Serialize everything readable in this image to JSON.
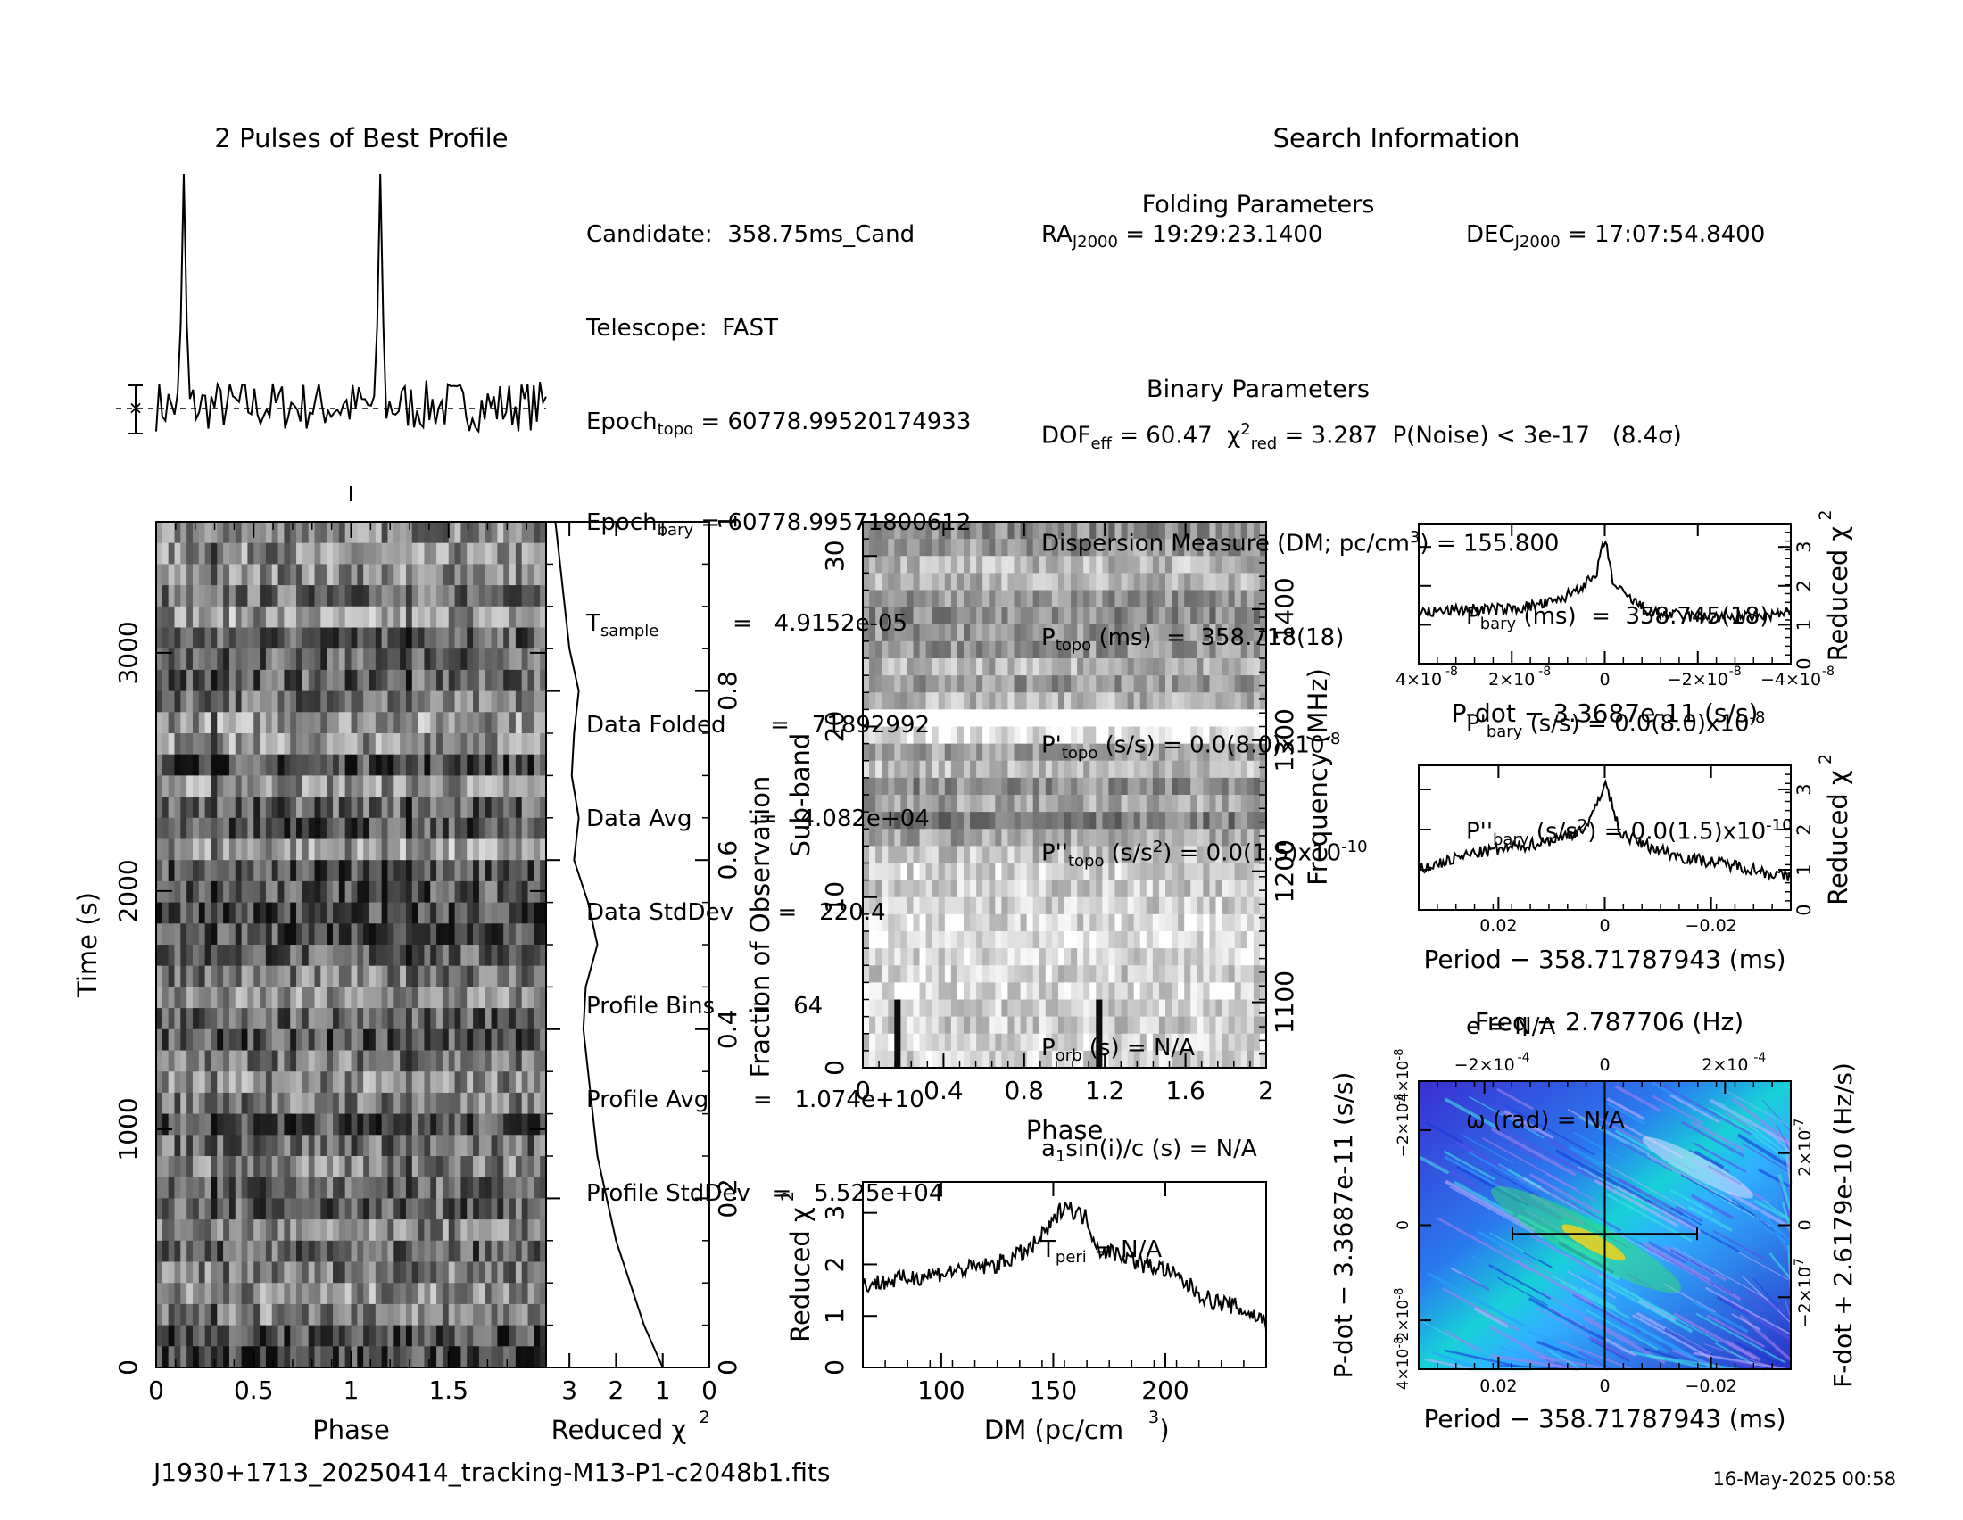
{
  "titles": {
    "pulses": "2 Pulses of Best Profile",
    "search": "Search Information",
    "folding": "Folding Parameters",
    "binary": "Binary Parameters"
  },
  "info_left": [
    {
      "label": "Candidate:",
      "value": "358.75ms_Cand"
    },
    {
      "label": "Telescope:",
      "value": "FAST"
    },
    {
      "label": "Epoch",
      "sub": "topo",
      "value": "= 60778.99520174933"
    },
    {
      "label": "Epoch",
      "sub": "bary",
      "value": "= 60778.99571800612"
    },
    {
      "label": "T",
      "sub": "sample",
      "value": "=   4.9152e-05"
    },
    {
      "label": "Data Folded",
      "value": "=   71892992"
    },
    {
      "label": "Data Avg",
      "value": "=   4.082e+04"
    },
    {
      "label": "Data StdDev",
      "value": "=   220.4"
    },
    {
      "label": "Profile Bins",
      "value": "=   64"
    },
    {
      "label": "Profile Avg",
      "value": "=   1.074e+10"
    },
    {
      "label": "Profile StdDev",
      "value": "=   5.525e+04"
    }
  ],
  "info_mid": {
    "ra": "= 19:29:23.1400",
    "ra_label": "RA",
    "ra_sub": "J2000",
    "dof": "DOF",
    "dof_sub": "eff",
    "dof_val": "= 60.47",
    "chi_red": "= 3.287",
    "pnoise": "P(Noise) < 3e-17   (8.4σ)",
    "dm_line": "Dispersion Measure (DM; pc/cm",
    "dm_val": ") = 155.800",
    "ptopo": "(ms)  =  358.718(18)",
    "pdot_topo": "(s/s) = 0.0(8.0)x10",
    "pdot_exp": "-8",
    "pddot_topo": "(s/s",
    "pddot_val": ") = 0.0(1.5)x10",
    "pddot_exp": "-10",
    "porb": "(s) = N/A",
    "a1": "sin(i)/c (s) = N/A",
    "tperi": "= N/A"
  },
  "info_right": {
    "dec_label": "DEC",
    "dec_sub": "J2000",
    "dec": "= 17:07:54.8400",
    "pbary": "(ms)  =  358.745(18)",
    "pdot_bary": "(s/s) = 0.0(8.0)x10",
    "pddot_bary_val": ") = 0.0(1.5)x10",
    "e": "e = N/A",
    "omega": "ω (rad) = N/A"
  },
  "footer": {
    "filename": "J1930+1713_20250414_tracking-M13-P1-c2048b1.fits",
    "date": "16-May-2025 00:58"
  },
  "chart_data": [
    {
      "type": "line",
      "title": "2 Pulses of Best Profile",
      "x_range": [
        0,
        2
      ],
      "peaks_phase": [
        0.14,
        1.14
      ],
      "values": [
        0.05,
        0.08,
        -0.02,
        0.1,
        -0.05,
        0.03,
        0.12,
        0.02,
        0.06,
        0.95,
        0.04,
        0.12,
        -0.04,
        0.06,
        0.1,
        -0.1,
        0.02,
        0.1,
        0.04,
        -0.08,
        0.03,
        0.12,
        -0.06,
        0.05,
        0.08,
        -0.04,
        0.12,
        0.02,
        -0.06,
        0.08,
        0.03,
        0.11
      ]
    },
    {
      "type": "heatmap",
      "xlabel": "Phase",
      "ylabel": "Time (s)",
      "x_range": [
        0,
        2
      ],
      "y_range": [
        0,
        3550
      ],
      "x_ticks": [
        "0",
        "0.5",
        "1",
        "1.5"
      ],
      "y_ticks": [
        "0",
        "1000",
        "2000",
        "3000"
      ]
    },
    {
      "type": "line",
      "xlabel": "Reduced χ",
      "ylabel": "Fraction of Observation",
      "x_ticks": [
        "3",
        "2",
        "1",
        "0"
      ],
      "y_ticks": [
        "0",
        "0.2",
        "0.4",
        "0.6",
        "0.8",
        "1"
      ],
      "x_range": [
        3.5,
        0
      ],
      "y": [
        0,
        0.05,
        0.1,
        0.15,
        0.2,
        0.25,
        0.3,
        0.35,
        0.4,
        0.45,
        0.5,
        0.55,
        0.6,
        0.65,
        0.7,
        0.75,
        0.8,
        0.85,
        0.9,
        0.95,
        1.0
      ],
      "x": [
        1.0,
        1.4,
        1.7,
        2.0,
        2.2,
        2.4,
        2.5,
        2.6,
        2.7,
        2.65,
        2.4,
        2.6,
        2.9,
        2.8,
        2.95,
        2.9,
        2.8,
        3.0,
        3.1,
        3.2,
        3.3
      ]
    },
    {
      "type": "heatmap",
      "xlabel": "Phase",
      "ylabel": "Sub-band",
      "y2label": "Frequency (MHz)",
      "x_ticks": [
        "0",
        "0.4",
        "0.8",
        "1.2",
        "1.6",
        "2"
      ],
      "y_ticks": [
        "0",
        "10",
        "20",
        "30"
      ],
      "y2_ticks": [
        "1100",
        "1200",
        "1300",
        "1400"
      ],
      "x_range": [
        0,
        2
      ],
      "y_range": [
        0,
        32
      ]
    },
    {
      "type": "line",
      "xlabel": "DM (pc/cm",
      "ylabel": "Reduced χ",
      "x_ticks": [
        "100",
        "150",
        "200"
      ],
      "y_ticks": [
        "0",
        "1",
        "2",
        "3"
      ],
      "x_range": [
        65,
        245
      ],
      "y_range": [
        0,
        3.6
      ],
      "x": [
        65,
        80,
        95,
        110,
        125,
        140,
        150,
        155,
        160,
        165,
        170,
        180,
        190,
        200,
        210,
        220,
        230,
        245
      ],
      "values": [
        1.6,
        1.7,
        1.8,
        1.9,
        2.0,
        2.3,
        2.8,
        3.2,
        3.0,
        2.9,
        2.3,
        2.2,
        2.0,
        1.9,
        1.6,
        1.3,
        1.2,
        0.9
      ]
    },
    {
      "type": "line",
      "xlabel": "P-dot − 3.3687e-11 (s/s)",
      "ylabel": "Reduced χ",
      "x_ticks": [
        "4×10",
        "2×10",
        "0",
        "−2×10",
        "−4×10"
      ],
      "y_ticks": [
        "0",
        "1",
        "2",
        "3"
      ],
      "x_range": [
        4e-08,
        -4e-08
      ],
      "y_range": [
        0,
        3.6
      ],
      "x": [
        4e-08,
        3e-08,
        2e-08,
        1e-08,
        5e-09,
        2e-09,
        0,
        -2e-09,
        -5e-09,
        -1e-08,
        -2e-08,
        -3e-08,
        -4e-08
      ],
      "values": [
        1.3,
        1.4,
        1.4,
        1.6,
        2.0,
        2.2,
        3.2,
        2.0,
        1.7,
        1.3,
        1.2,
        1.2,
        1.3
      ]
    },
    {
      "type": "line",
      "xlabel": "Period − 358.71787943 (ms)",
      "ylabel": "Reduced χ",
      "x_ticks": [
        "0.02",
        "0",
        "−0.02"
      ],
      "y_ticks": [
        "0",
        "1",
        "2",
        "3"
      ],
      "x_range": [
        0.035,
        -0.035
      ],
      "y_range": [
        0,
        3.6
      ],
      "x": [
        0.035,
        0.025,
        0.015,
        0.008,
        0.003,
        0,
        -0.003,
        -0.008,
        -0.015,
        -0.025,
        -0.035
      ],
      "values": [
        1.0,
        1.4,
        1.6,
        1.8,
        2.1,
        3.2,
        1.9,
        1.6,
        1.3,
        1.1,
        0.8
      ]
    },
    {
      "type": "heatmap",
      "title": "Freq − 2.787706 (Hz)",
      "xlabel": "Period − 358.71787943 (ms)",
      "ylabel": "P-dot − 3.3687e-11 (s/s)",
      "y2label": "F-dot + 2.6179e-10 (Hz/s)",
      "x_ticks": [
        "0.02",
        "0",
        "−0.02"
      ],
      "top_ticks": [
        "−2×10",
        "0",
        "2×10"
      ],
      "y_ticks": [
        "4×10",
        "2×10",
        "0",
        "−2×10",
        "4×10"
      ],
      "y2_ticks": [
        "−2×10",
        "0",
        "2×10"
      ]
    }
  ]
}
